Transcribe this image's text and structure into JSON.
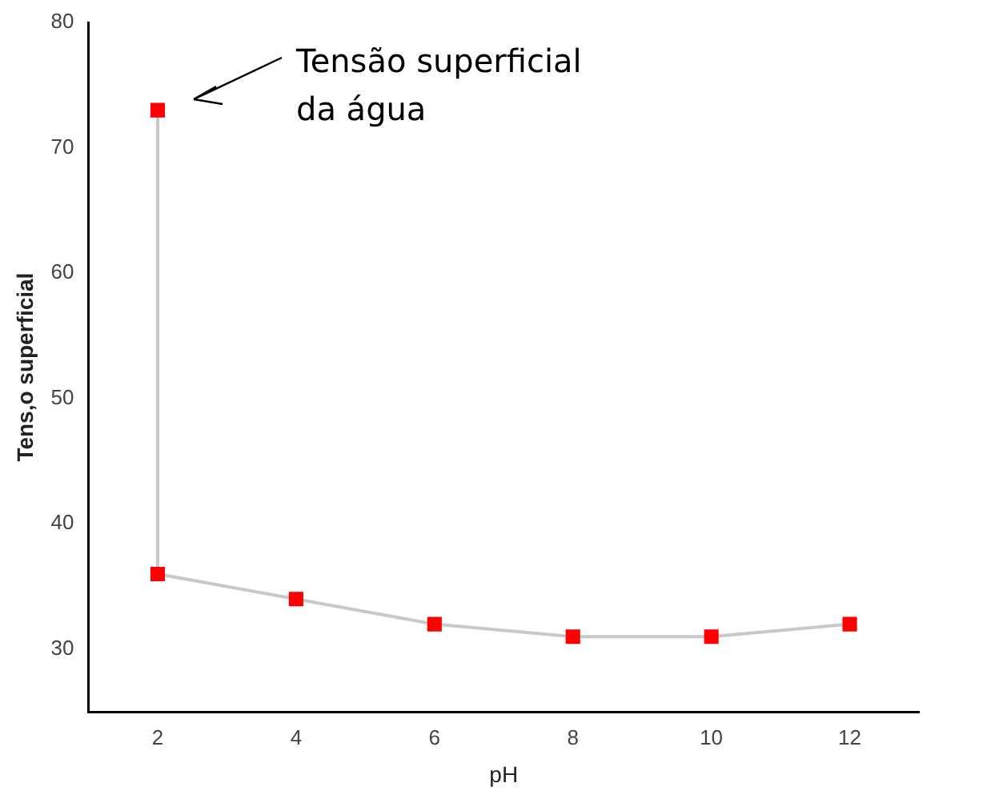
{
  "chart_data": {
    "type": "line",
    "xlabel": "pH",
    "ylabel": "Tens‚o superficial",
    "x": [
      2,
      2,
      4,
      6,
      8,
      10,
      12
    ],
    "series": [
      {
        "color": "#ff0000",
        "values": [
          73,
          36,
          34,
          32,
          31,
          31,
          32
        ]
      }
    ],
    "xlim": [
      1,
      13
    ],
    "xticks": [
      2,
      4,
      6,
      8,
      10,
      12
    ],
    "ylim": [
      25,
      80
    ],
    "yticks": [
      30,
      40,
      50,
      60,
      70,
      80
    ],
    "grid": false,
    "legend": false,
    "marker": "square",
    "line_style": "solid",
    "annotations": [
      "Tensão superficial da água"
    ]
  }
}
